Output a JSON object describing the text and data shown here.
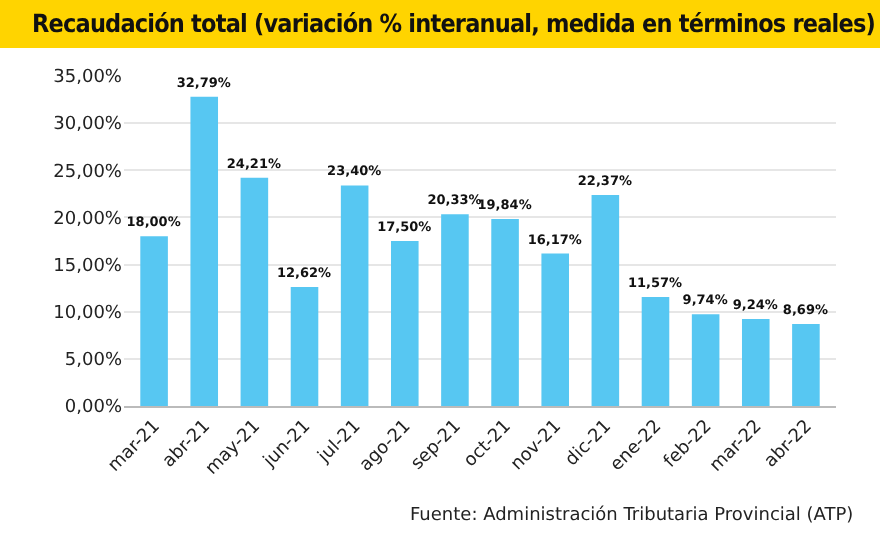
{
  "chart_data": {
    "type": "bar",
    "title": "Recaudación total (variación % interanual, medida en términos reales)",
    "categories": [
      "mar-21",
      "abr-21",
      "may-21",
      "jun-21",
      "jul-21",
      "ago-21",
      "sep-21",
      "oct-21",
      "nov-21",
      "dic-21",
      "ene-22",
      "feb-22",
      "mar-22",
      "abr-22"
    ],
    "values": [
      18.0,
      32.79,
      24.21,
      12.62,
      23.4,
      17.5,
      20.33,
      19.84,
      16.17,
      22.37,
      11.57,
      9.74,
      9.24,
      8.69
    ],
    "value_labels": [
      "18,00%",
      "32,79%",
      "24,21%",
      "12,62%",
      "23,40%",
      "17,50%",
      "20,33%",
      "19,84%",
      "16,17%",
      "22,37%",
      "11,57%",
      "9,74%",
      "9,24%",
      "8,69%"
    ],
    "color": "#57c7f2",
    "ylim": [
      0,
      35
    ],
    "yticks": [
      {
        "value": 0,
        "label": "0,00%"
      },
      {
        "value": 5,
        "label": "5,00%"
      },
      {
        "value": 10,
        "label": "10,00%"
      },
      {
        "value": 15,
        "label": "15,00%"
      },
      {
        "value": 20,
        "label": "20,00%"
      },
      {
        "value": 25,
        "label": "25,00%"
      },
      {
        "value": 30,
        "label": "30,00%"
      },
      {
        "value": 35,
        "label": "35,00%"
      }
    ],
    "grid": "y",
    "annotations": [
      "Fuente: Administración Tributaria Provincial (ATP)"
    ]
  }
}
